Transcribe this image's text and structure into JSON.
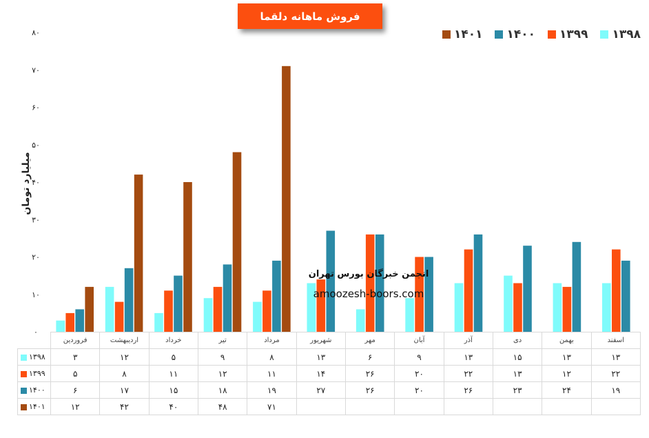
{
  "chart_data": {
    "type": "bar",
    "title": "فروش ماهانه دلقما",
    "ylabel": "میلیارد تومان",
    "ylim": [
      0,
      80
    ],
    "yticks": [
      "۰",
      "۱۰",
      "۲۰",
      "۳۰",
      "۴۰",
      "۵۰",
      "۶۰",
      "۷۰",
      "۸۰"
    ],
    "categories": [
      "فروردین",
      "اردیبهشت",
      "خرداد",
      "تیر",
      "مرداد",
      "شهریور",
      "مهر",
      "آبان",
      "آذر",
      "دی",
      "بهمن",
      "اسفند"
    ],
    "legend_position": "top-right",
    "grid": false,
    "series": [
      {
        "name": "۱۳۹۸",
        "color": "#7ffbfb",
        "values": [
          3,
          12,
          5,
          9,
          8,
          13,
          6,
          9,
          13,
          15,
          13,
          13
        ],
        "labels": [
          "۳",
          "۱۲",
          "۵",
          "۹",
          "۸",
          "۱۳",
          "۶",
          "۹",
          "۱۳",
          "۱۵",
          "۱۳",
          "۱۳"
        ]
      },
      {
        "name": "۱۳۹۹",
        "color": "#fc4f0f",
        "values": [
          5,
          8,
          11,
          12,
          11,
          14,
          26,
          20,
          22,
          13,
          12,
          22
        ],
        "labels": [
          "۵",
          "۸",
          "۱۱",
          "۱۲",
          "۱۱",
          "۱۴",
          "۲۶",
          "۲۰",
          "۲۲",
          "۱۳",
          "۱۲",
          "۲۲"
        ]
      },
      {
        "name": "۱۴۰۰",
        "color": "#2b8aa6",
        "values": [
          6,
          17,
          15,
          18,
          19,
          27,
          26,
          20,
          26,
          23,
          24,
          19
        ],
        "labels": [
          "۶",
          "۱۷",
          "۱۵",
          "۱۸",
          "۱۹",
          "۲۷",
          "۲۶",
          "۲۰",
          "۲۶",
          "۲۳",
          "۲۴",
          "۱۹"
        ]
      },
      {
        "name": "۱۴۰۱",
        "color": "#a44b10",
        "values": [
          12,
          42,
          40,
          48,
          71,
          null,
          null,
          null,
          null,
          null,
          null,
          null
        ],
        "labels": [
          "۱۲",
          "۴۲",
          "۴۰",
          "۴۸",
          "۷۱",
          "",
          "",
          "",
          "",
          "",
          "",
          ""
        ]
      }
    ]
  },
  "watermark": {
    "line1": "انجمن خبرگان بورس تهران",
    "line2": "amoozesh-boors.com"
  }
}
